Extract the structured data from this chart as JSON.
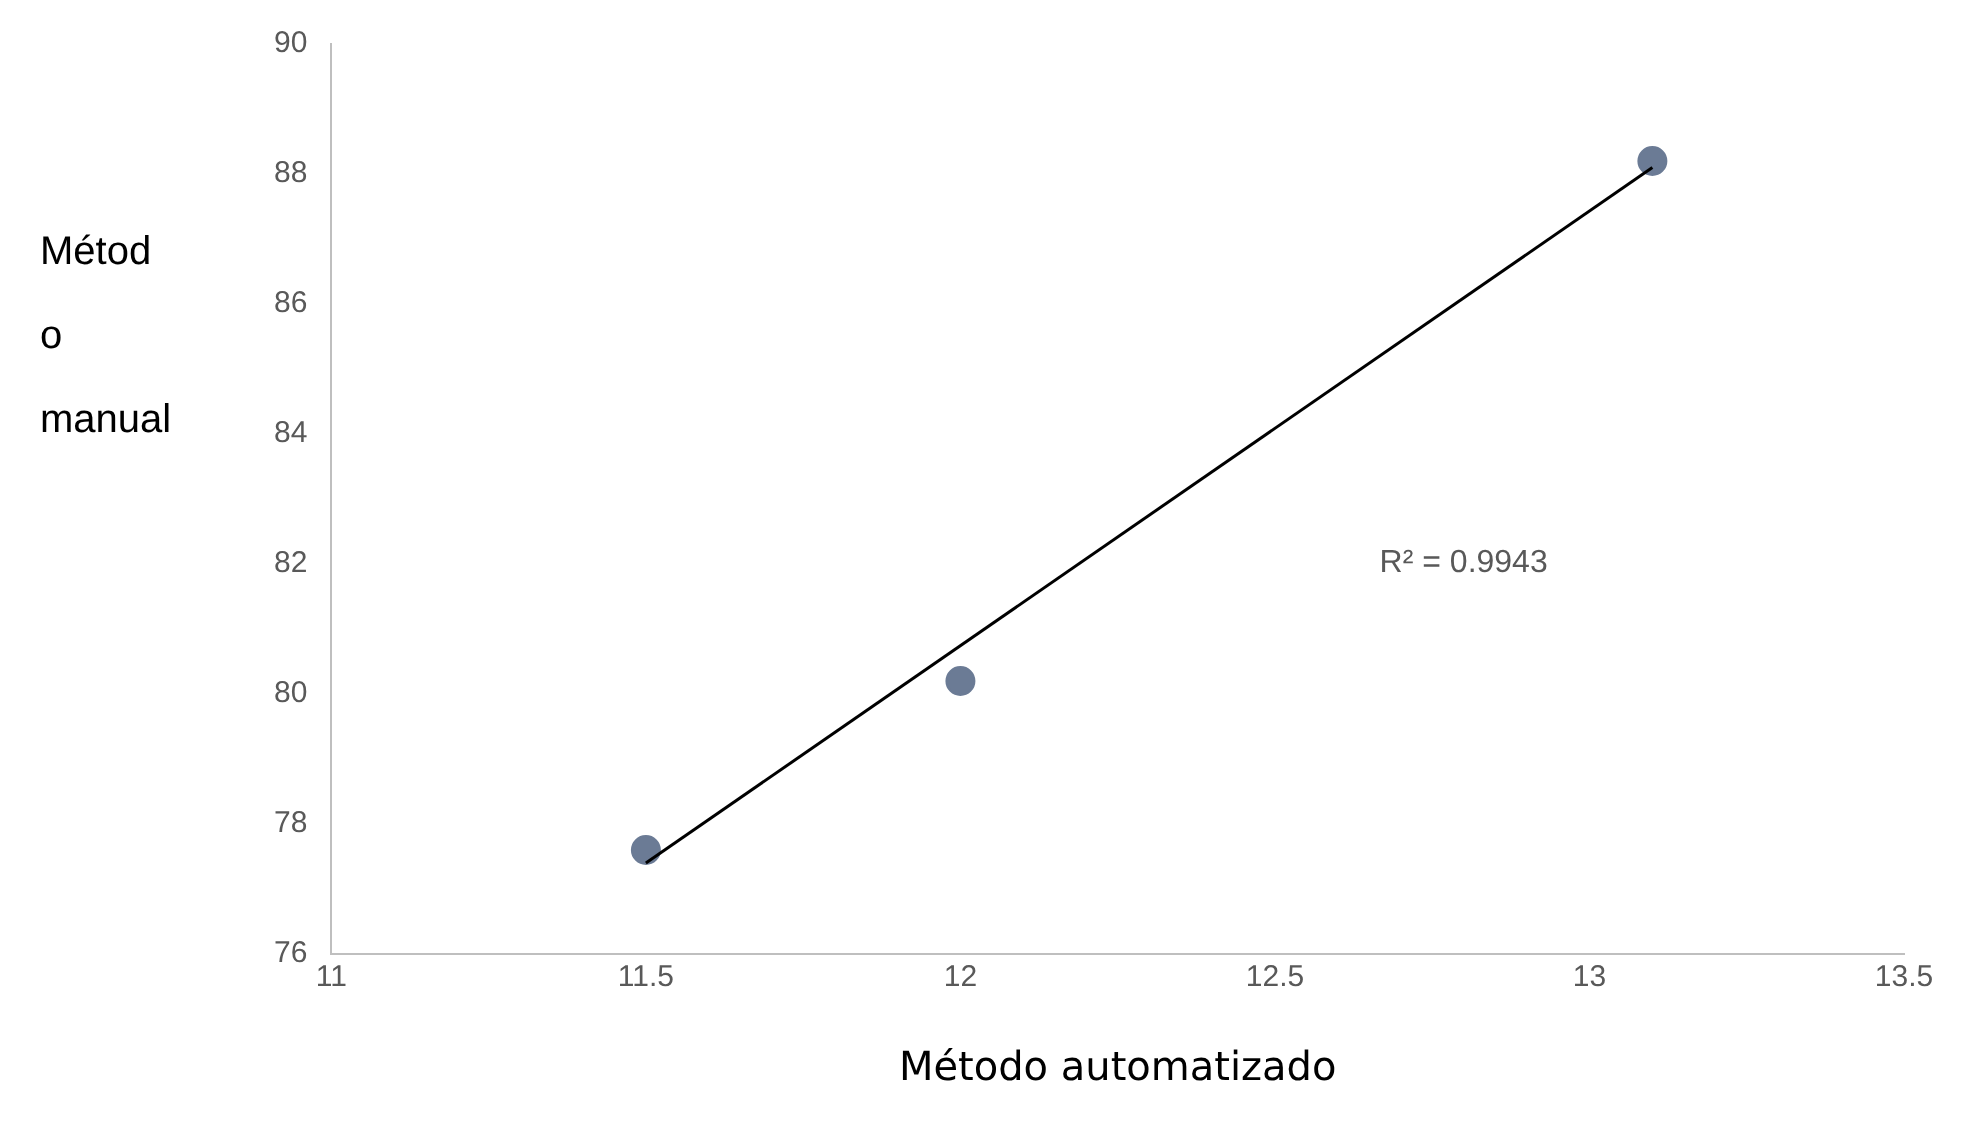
{
  "chart_data": {
    "type": "scatter",
    "xlabel": "Método automatizado",
    "ylabel": "Método manual",
    "series": [
      {
        "type": "scatter",
        "color": "#6b7b95",
        "x": [
          11.5,
          12,
          13.1
        ],
        "values": [
          77.6,
          80.2,
          88.2
        ],
        "marker": "circle"
      },
      {
        "type": "line",
        "color": "#000000",
        "x": [
          11.5,
          13.1
        ],
        "values": [
          77.4,
          88.1
        ],
        "marker": "none",
        "line_style": "solid"
      }
    ],
    "xlim": [
      11,
      13.5
    ],
    "xticks": [
      11,
      11.5,
      12,
      12.5,
      13,
      13.5
    ],
    "ylim": [
      76,
      90
    ],
    "yticks": [
      76,
      78,
      80,
      82,
      84,
      86,
      88,
      90
    ],
    "grid": false,
    "legend": false,
    "annotations": [
      "R² = 0.9943"
    ]
  }
}
